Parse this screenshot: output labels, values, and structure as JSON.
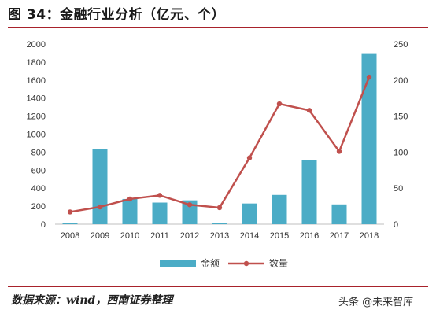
{
  "title": "图 34：金融行业分析（亿元、个）",
  "source": "数据来源：wind，西南证券整理",
  "watermark": "头条 @未来智库",
  "colors": {
    "bar": "#4bacc6",
    "line": "#c0504d",
    "rule": "#a8222b",
    "grid": "#d9d9d9"
  },
  "chart_data": {
    "type": "bar",
    "categories": [
      "2008",
      "2009",
      "2010",
      "2011",
      "2012",
      "2013",
      "2014",
      "2015",
      "2016",
      "2017",
      "2018"
    ],
    "series": [
      {
        "name": "金额",
        "type": "bar",
        "axis": "left",
        "values": [
          15,
          830,
          280,
          240,
          265,
          15,
          230,
          325,
          710,
          220,
          1890
        ]
      },
      {
        "name": "数量",
        "type": "line",
        "axis": "right",
        "values": [
          17,
          24,
          35,
          40,
          27,
          23,
          92,
          167,
          158,
          101,
          204
        ]
      }
    ],
    "y_left": {
      "min": 0,
      "max": 2000,
      "step": 200
    },
    "y_right": {
      "min": 0,
      "max": 250,
      "step": 50
    },
    "grid": false,
    "legend_position": "bottom"
  }
}
